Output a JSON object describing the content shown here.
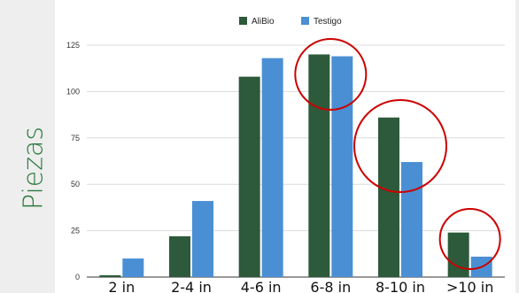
{
  "page": {
    "y_axis_label": "Piezas",
    "title_fragment": "(   )"
  },
  "chart_data": {
    "type": "bar",
    "categories": [
      "2 in",
      "2-4 in",
      "4-6 in",
      "6-8 in",
      "8-10 in",
      ">10 in"
    ],
    "series": [
      {
        "name": "AliBio",
        "values": [
          1,
          22,
          108,
          120,
          86,
          24
        ],
        "color": "#2d5a3a"
      },
      {
        "name": "Testigo",
        "values": [
          10,
          41,
          118,
          119,
          62,
          11
        ],
        "color": "#4a8fd4"
      }
    ],
    "ylim": [
      0,
      125
    ],
    "yticks": [
      0,
      25,
      50,
      75,
      100,
      125
    ],
    "ylabel": "Piezas",
    "legend_position": "top",
    "grid": true,
    "gridline_color": "#dcdcdc",
    "highlight_color": "#cc0000",
    "highlighted_categories": [
      "6-8 in",
      "8-10 in",
      ">10 in"
    ]
  }
}
